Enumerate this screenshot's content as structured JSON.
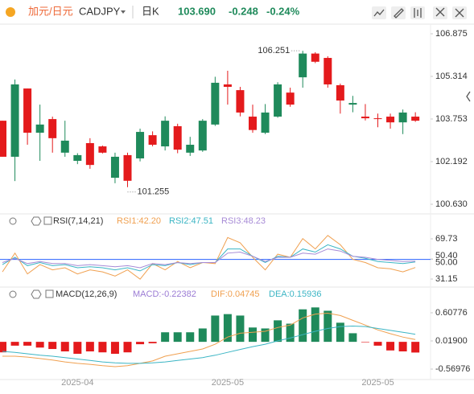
{
  "header": {
    "pair_cn": "加元/日元",
    "symbol": "CADJPY",
    "interval": "日K",
    "price": "103.690",
    "change": "-0.248",
    "change_pct": "-0.24%"
  },
  "chart_data": [
    {
      "type": "candlestick",
      "up_color": "#1f8a5b",
      "down_color": "#e41a1c",
      "open": [
        103.69,
        102.37,
        104.87,
        103.25,
        103.75,
        102.52,
        102.22,
        102.87,
        102.75,
        101.6,
        102.43,
        102.31,
        103.16,
        102.75,
        103.49,
        102.52,
        102.6,
        103.55,
        105.02,
        104.81,
        103.84,
        103.25,
        103.84,
        104.72,
        105.28,
        106.15,
        105.99,
        104.99,
        104.28,
        103.84,
        103.78,
        103.84,
        103.63,
        103.84
      ],
      "high": [
        103.69,
        105.2,
        104.87,
        104.28,
        103.84,
        103.69,
        102.5,
        103.05,
        102.78,
        102.52,
        102.52,
        103.4,
        103.3,
        103.85,
        103.58,
        103.1,
        103.75,
        105.3,
        105.52,
        104.93,
        104.28,
        104.3,
        105.1,
        104.9,
        106.251,
        106.2,
        106.05,
        105.05,
        104.6,
        104.3,
        103.95,
        103.95,
        104.1,
        104.0
      ],
      "low": [
        102.37,
        101.48,
        102.81,
        102.22,
        102.52,
        102.37,
        102.1,
        101.93,
        102.49,
        101.4,
        101.255,
        102.2,
        102.75,
        102.6,
        102.5,
        102.4,
        102.55,
        103.5,
        104.28,
        103.85,
        103.25,
        103.2,
        103.8,
        104.2,
        104.9,
        105.8,
        104.9,
        103.95,
        104.0,
        103.7,
        103.45,
        103.4,
        103.2,
        103.65
      ],
      "close": [
        102.37,
        105.02,
        103.25,
        103.55,
        103.05,
        102.96,
        102.43,
        102.07,
        102.52,
        102.37,
        101.49,
        103.28,
        102.81,
        103.69,
        102.63,
        102.81,
        103.69,
        105.08,
        104.93,
        103.99,
        103.35,
        103.99,
        105.02,
        104.28,
        106.15,
        105.85,
        105.02,
        104.43,
        104.34,
        103.78,
        103.75,
        103.63,
        103.99,
        103.69
      ],
      "ylim": [
        100.307,
        107.228
      ],
      "yticks": [
        106.875,
        105.314,
        103.753,
        102.192,
        {
          "value": 100.63,
          "label": "100.630"
        }
      ]
    },
    {
      "type": "line",
      "title": "RSI(7,14,21)",
      "reference_line": 50,
      "series": [
        {
          "name": "RSI1:42.20",
          "color": "#f0a050",
          "values": [
            38,
            56,
            36,
            45,
            40,
            42,
            36,
            40,
            38,
            34,
            40,
            31,
            46,
            40,
            48,
            42,
            47,
            46,
            71,
            66,
            52,
            40,
            55,
            52,
            70,
            60,
            73,
            64,
            50,
            47,
            42,
            41,
            38,
            42.2
          ]
        },
        {
          "name": "RSI2:47.51",
          "color": "#3bb5c4",
          "values": [
            45,
            52,
            44,
            47,
            44,
            45,
            42,
            43,
            42,
            40,
            42,
            39,
            45,
            44,
            47,
            45,
            47,
            47,
            60,
            60,
            53,
            47,
            53,
            52,
            60,
            57,
            64,
            60,
            53,
            51,
            48,
            47,
            46,
            47.51
          ]
        },
        {
          "name": "RSI3:48.23",
          "color": "#a78bd6",
          "values": [
            47,
            51,
            46,
            48,
            46,
            46,
            44,
            45,
            44,
            43,
            44,
            42,
            46,
            45,
            47,
            46,
            47,
            47,
            56,
            57,
            53,
            48,
            52,
            52,
            56,
            55,
            60,
            58,
            53,
            52,
            50,
            49,
            48,
            48.23
          ]
        }
      ],
      "ylim": [
        25,
        79
      ],
      "yticks": [
        69.73,
        {
          "value": 50.4,
          "label": "50.40"
        },
        {
          "value": 50,
          "label": "50.00"
        },
        31.15
      ]
    },
    {
      "type": "macd",
      "title": "MACD(12,26,9)",
      "categories": [
        null,
        null,
        null,
        null,
        null,
        null,
        "2025-04",
        null,
        null,
        null,
        null,
        null,
        null,
        null,
        null,
        null,
        null,
        null,
        "2025-05",
        null,
        null,
        null,
        null,
        null,
        null,
        null,
        null,
        null,
        null,
        null,
        "2025-05",
        null,
        null,
        null
      ],
      "histogram": {
        "name": "MACD:-0.22382",
        "color": "#9b7bd4",
        "up_color": "#1f8a5b",
        "down_color": "#e41a1c",
        "values": [
          -0.22,
          -0.08,
          -0.08,
          -0.12,
          -0.15,
          -0.2,
          -0.25,
          -0.2,
          -0.22,
          -0.25,
          -0.22,
          -0.05,
          -0.03,
          0.2,
          0.2,
          0.2,
          0.28,
          0.55,
          0.58,
          0.55,
          0.3,
          0.28,
          0.45,
          0.38,
          0.68,
          0.72,
          0.65,
          0.4,
          0.18,
          -0.01,
          -0.08,
          -0.18,
          -0.2,
          -0.22382
        ]
      },
      "series": [
        {
          "name": "DIF:0.04745",
          "color": "#f0a050",
          "values": [
            -0.3,
            -0.3,
            -0.32,
            -0.35,
            -0.38,
            -0.42,
            -0.45,
            -0.47,
            -0.5,
            -0.52,
            -0.5,
            -0.45,
            -0.4,
            -0.3,
            -0.25,
            -0.2,
            -0.15,
            -0.05,
            0.1,
            0.18,
            0.2,
            0.22,
            0.3,
            0.35,
            0.5,
            0.58,
            0.6,
            0.55,
            0.45,
            0.35,
            0.25,
            0.17,
            0.1,
            0.04745
          ]
        },
        {
          "name": "DEA:0.15936",
          "color": "#3bb5c4",
          "values": [
            -0.2,
            -0.22,
            -0.25,
            -0.28,
            -0.3,
            -0.33,
            -0.36,
            -0.39,
            -0.42,
            -0.44,
            -0.45,
            -0.45,
            -0.44,
            -0.42,
            -0.39,
            -0.36,
            -0.33,
            -0.28,
            -0.22,
            -0.16,
            -0.1,
            -0.05,
            0.02,
            0.08,
            0.15,
            0.22,
            0.28,
            0.32,
            0.33,
            0.32,
            0.28,
            0.24,
            0.2,
            0.15936
          ]
        }
      ],
      "ylim": [
        -0.755,
        1.062
      ],
      "yticks": [
        0.60776,
        {
          "value": 0.019,
          "label": "0.01900"
        },
        -0.56976
      ]
    }
  ]
}
